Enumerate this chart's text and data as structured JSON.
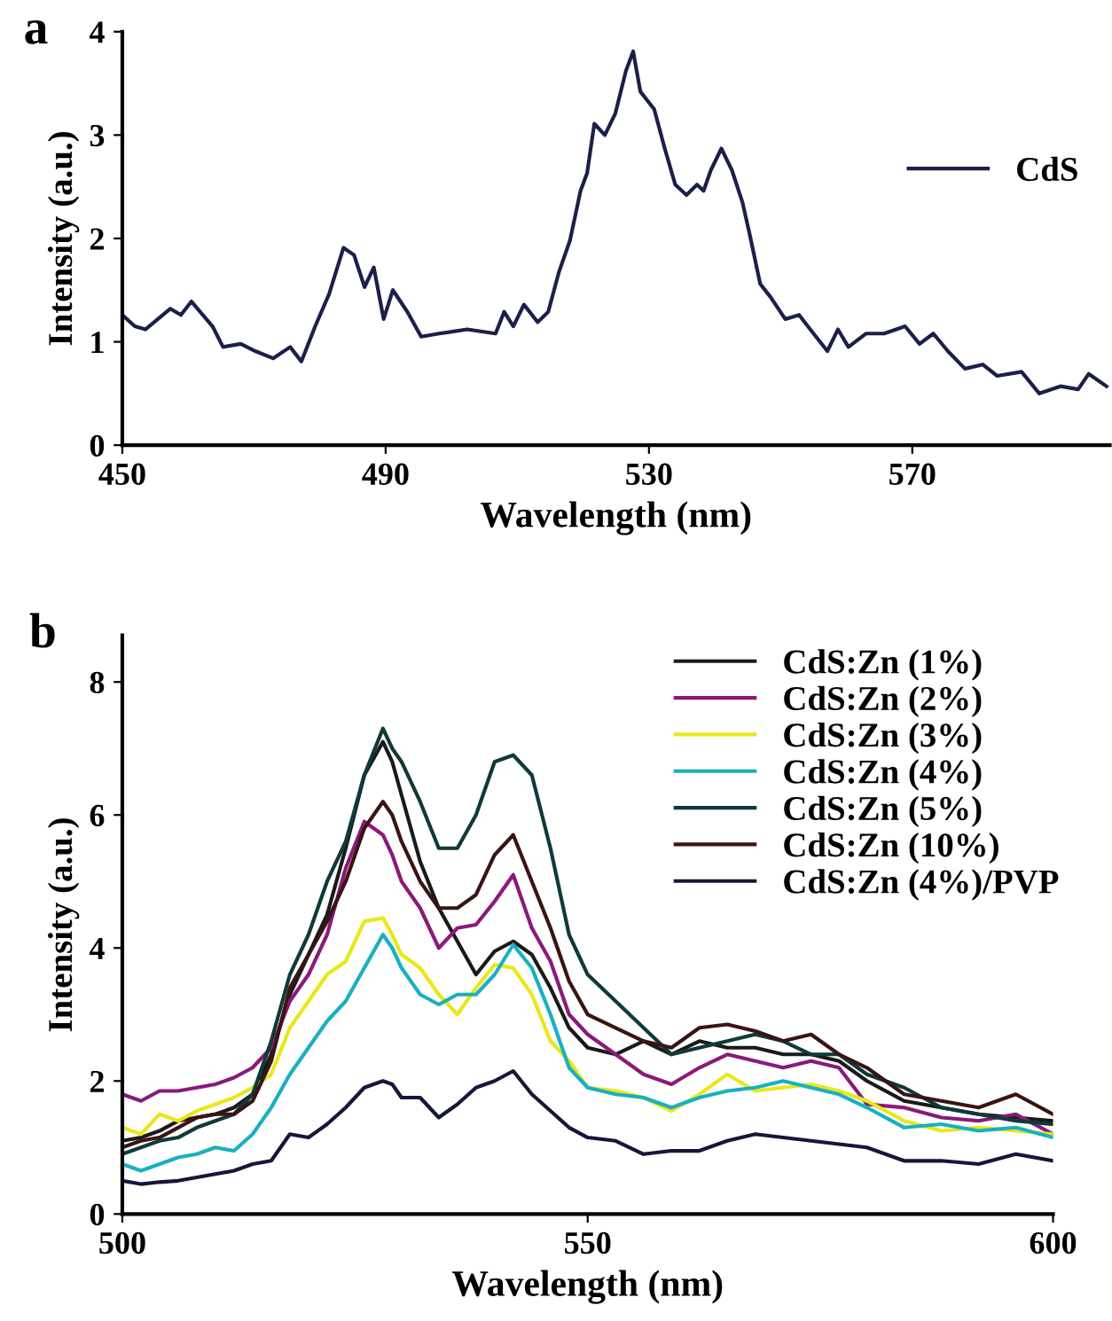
{
  "chart_data": [
    {
      "type": "line",
      "title": "a",
      "xlabel": "Wavelength (nm)",
      "ylabel": "Intensity (a.u.)",
      "xlim": [
        450,
        600
      ],
      "xticks": [
        450,
        490,
        530,
        570
      ],
      "ylim": [
        0,
        4
      ],
      "yticks": [
        0,
        1,
        2,
        3,
        4
      ],
      "legend": "right",
      "grid": false,
      "series": [
        {
          "name": "CdS",
          "color": "#1c1f4a",
          "x": [
            450,
            451.9,
            453.5,
            457.3,
            458.9,
            460.5,
            463.7,
            465.3,
            468,
            470.2,
            472.9,
            475.5,
            477.2,
            479.3,
            481.4,
            483.6,
            485.2,
            486.8,
            488.2,
            489.7,
            491.1,
            493.3,
            495.4,
            498.1,
            502.4,
            506.7,
            508,
            509.4,
            511,
            513.1,
            514.7,
            516.3,
            518,
            519.6,
            520.6,
            521.7,
            523.3,
            524.9,
            526.5,
            527.6,
            528.7,
            530.8,
            532.4,
            534,
            535.7,
            537.3,
            538.3,
            539.4,
            541,
            542.6,
            544.2,
            545.3,
            546.9,
            548.5,
            550.7,
            552.8,
            555,
            557.1,
            558.7,
            560.3,
            563,
            565.7,
            568.9,
            571.1,
            573.2,
            575.4,
            578,
            580.7,
            582.9,
            586.6,
            589.3,
            592.5,
            595.2,
            596.8,
            599.5
          ],
          "values": [
            1.26,
            1.15,
            1.12,
            1.32,
            1.26,
            1.39,
            1.15,
            0.95,
            0.98,
            0.91,
            0.84,
            0.95,
            0.81,
            1.15,
            1.46,
            1.91,
            1.84,
            1.53,
            1.72,
            1.22,
            1.5,
            1.29,
            1.05,
            1.08,
            1.12,
            1.08,
            1.29,
            1.15,
            1.36,
            1.19,
            1.29,
            1.67,
            1.98,
            2.46,
            2.63,
            3.11,
            3.0,
            3.21,
            3.62,
            3.81,
            3.42,
            3.25,
            2.87,
            2.52,
            2.42,
            2.52,
            2.46,
            2.66,
            2.87,
            2.66,
            2.35,
            2.04,
            1.56,
            1.43,
            1.22,
            1.26,
            1.08,
            0.91,
            1.12,
            0.95,
            1.08,
            1.08,
            1.15,
            0.98,
            1.08,
            0.91,
            0.74,
            0.78,
            0.67,
            0.71,
            0.5,
            0.57,
            0.54,
            0.69,
            0.57
          ]
        }
      ]
    },
    {
      "type": "line",
      "title": "b",
      "xlabel": "Wavelength (nm)",
      "ylabel": "Intensity (a.u.)",
      "xlim": [
        500,
        600
      ],
      "xticks": [
        500,
        550,
        600
      ],
      "ylim": [
        0,
        8.7
      ],
      "yticks": [
        0,
        2,
        4,
        6,
        8
      ],
      "legend": "top right",
      "grid": false,
      "x": [
        500,
        502,
        504,
        506,
        508,
        510,
        512,
        514,
        516,
        518,
        520,
        522,
        524,
        526,
        528,
        529,
        530,
        532,
        534,
        536,
        538,
        540,
        542,
        544,
        546,
        548,
        550,
        553,
        556,
        559,
        562,
        565,
        568,
        571,
        574,
        577,
        580,
        584,
        588,
        592,
        596,
        600
      ],
      "series": [
        {
          "name": "CdS:Zn (1%)",
          "color": "#1a1a1a",
          "values": [
            1.1,
            1.15,
            1.25,
            1.4,
            1.45,
            1.5,
            1.6,
            1.8,
            2.4,
            3.3,
            3.9,
            4.5,
            5.5,
            6.6,
            7.1,
            6.8,
            6.3,
            5.3,
            4.6,
            4.1,
            3.6,
            3.95,
            4.1,
            3.9,
            3.4,
            2.8,
            2.5,
            2.4,
            2.6,
            2.4,
            2.6,
            2.5,
            2.5,
            2.4,
            2.4,
            2.3,
            2.0,
            1.7,
            1.6,
            1.5,
            1.45,
            1.4
          ]
        },
        {
          "name": "CdS:Zn (2%)",
          "color": "#8a1a7a",
          "values": [
            1.8,
            1.7,
            1.85,
            1.85,
            1.9,
            1.95,
            2.05,
            2.2,
            2.5,
            3.2,
            3.6,
            4.2,
            5.2,
            5.9,
            5.7,
            5.4,
            5.0,
            4.6,
            4.0,
            4.3,
            4.35,
            4.7,
            5.1,
            4.3,
            3.8,
            3.0,
            2.7,
            2.4,
            2.1,
            1.95,
            2.2,
            2.4,
            2.3,
            2.2,
            2.3,
            2.2,
            1.65,
            1.6,
            1.45,
            1.4,
            1.5,
            1.2
          ]
        },
        {
          "name": "CdS:Zn (3%)",
          "color": "#e8e81a",
          "values": [
            1.3,
            1.2,
            1.5,
            1.4,
            1.55,
            1.65,
            1.75,
            1.9,
            2.1,
            2.8,
            3.2,
            3.6,
            3.8,
            4.4,
            4.45,
            4.2,
            3.9,
            3.7,
            3.3,
            3.0,
            3.4,
            3.75,
            3.7,
            3.3,
            2.6,
            2.3,
            1.9,
            1.85,
            1.75,
            1.55,
            1.8,
            2.1,
            1.85,
            1.9,
            1.95,
            1.85,
            1.7,
            1.4,
            1.25,
            1.3,
            1.25,
            1.2
          ]
        },
        {
          "name": "CdS:Zn (4%)",
          "color": "#1ab0c0",
          "values": [
            0.75,
            0.65,
            0.75,
            0.85,
            0.9,
            1.0,
            0.95,
            1.2,
            1.6,
            2.1,
            2.5,
            2.9,
            3.2,
            3.7,
            4.2,
            4.0,
            3.7,
            3.3,
            3.15,
            3.3,
            3.3,
            3.6,
            4.05,
            3.7,
            3.0,
            2.2,
            1.9,
            1.8,
            1.75,
            1.6,
            1.75,
            1.85,
            1.9,
            2.0,
            1.9,
            1.8,
            1.6,
            1.3,
            1.35,
            1.25,
            1.3,
            1.15
          ]
        },
        {
          "name": "CdS:Zn (5%)",
          "color": "#0f3a3a",
          "values": [
            0.9,
            1.0,
            1.1,
            1.15,
            1.3,
            1.4,
            1.5,
            1.8,
            2.6,
            3.6,
            4.2,
            5.0,
            5.6,
            6.6,
            7.3,
            7.0,
            6.8,
            6.2,
            5.5,
            5.5,
            6.0,
            6.8,
            6.9,
            6.6,
            5.5,
            4.2,
            3.6,
            3.2,
            2.8,
            2.4,
            2.5,
            2.6,
            2.7,
            2.6,
            2.4,
            2.4,
            2.1,
            1.9,
            1.6,
            1.5,
            1.4,
            1.35
          ]
        },
        {
          "name": "CdS:Zn (10%)",
          "color": "#3a1414",
          "values": [
            1.0,
            1.1,
            1.15,
            1.3,
            1.45,
            1.5,
            1.5,
            1.7,
            2.3,
            3.4,
            3.9,
            4.4,
            5.0,
            5.8,
            6.2,
            6.0,
            5.6,
            5.0,
            4.6,
            4.6,
            4.8,
            5.4,
            5.7,
            5.0,
            4.3,
            3.5,
            3.0,
            2.8,
            2.6,
            2.5,
            2.8,
            2.85,
            2.75,
            2.6,
            2.7,
            2.4,
            2.2,
            1.8,
            1.7,
            1.6,
            1.8,
            1.5
          ]
        },
        {
          "name": "CdS:Zn (4%)/PVP",
          "color": "#15173a",
          "values": [
            0.5,
            0.45,
            0.48,
            0.5,
            0.55,
            0.6,
            0.65,
            0.75,
            0.8,
            1.2,
            1.15,
            1.35,
            1.6,
            1.9,
            2.0,
            1.95,
            1.75,
            1.75,
            1.45,
            1.65,
            1.9,
            2.0,
            2.15,
            1.8,
            1.55,
            1.3,
            1.15,
            1.1,
            0.9,
            0.95,
            0.95,
            1.1,
            1.2,
            1.15,
            1.1,
            1.05,
            1.0,
            0.8,
            0.8,
            0.75,
            0.9,
            0.8
          ]
        }
      ]
    }
  ]
}
